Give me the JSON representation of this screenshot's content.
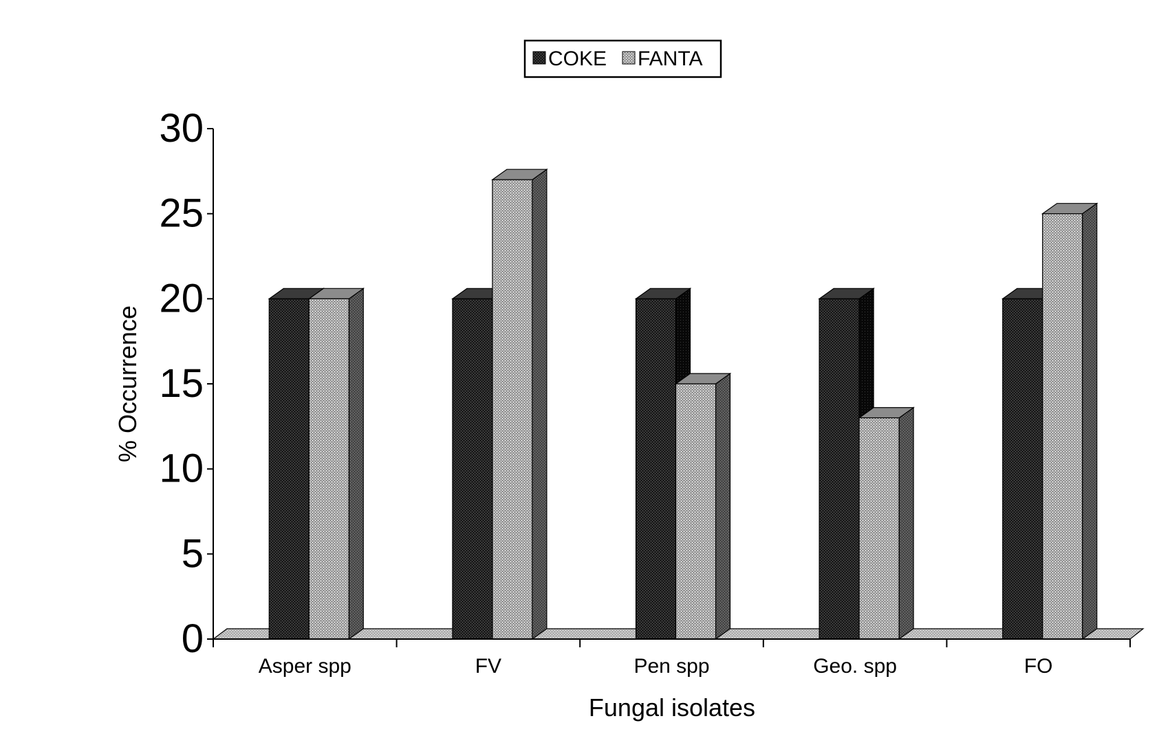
{
  "chart_data": {
    "type": "bar",
    "style": "3d-clustered-column",
    "categories": [
      "Asper spp",
      "FV",
      "Pen spp",
      "Geo. spp",
      "FO"
    ],
    "series": [
      {
        "name": "COKE",
        "values": [
          20,
          20,
          20,
          20,
          20
        ],
        "pattern": "dark-dotted"
      },
      {
        "name": "FANTA",
        "values": [
          20,
          27,
          15,
          13,
          25
        ],
        "pattern": "light-dotted"
      }
    ],
    "xlabel": "Fungal isolates",
    "ylabel": "% Occurrence",
    "ylim": [
      0,
      30
    ],
    "yticks": [
      0,
      5,
      10,
      15,
      20,
      25,
      30
    ],
    "grid": false,
    "legend_position": "top-center",
    "colors": {
      "coke_front": "#1e1e1e",
      "coke_side": "#0a0a0a",
      "coke_top": "#3a3a3a",
      "fanta_front": "#a8a8a8",
      "fanta_side": "#4a4a4a",
      "fanta_top": "#8c8c8c",
      "floor": "#b8b8b8"
    }
  }
}
